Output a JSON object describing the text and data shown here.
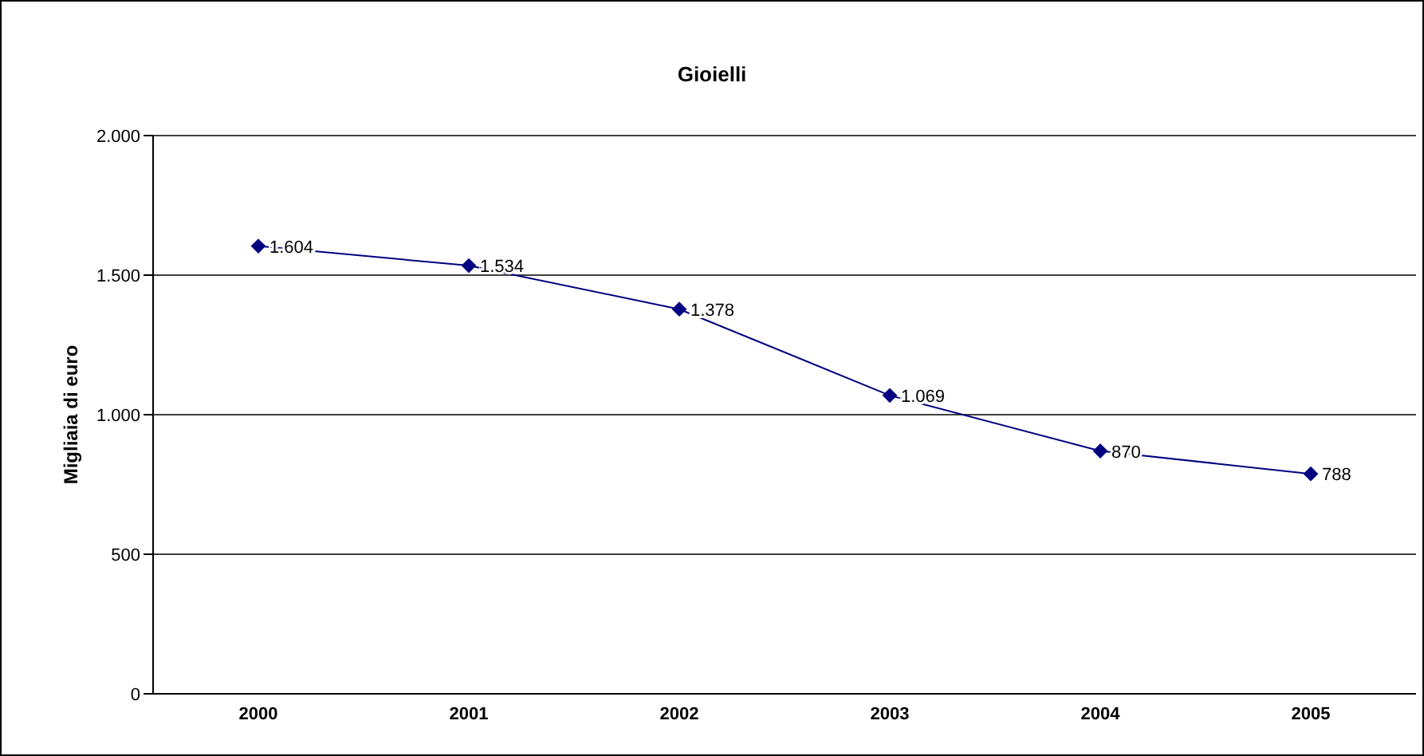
{
  "chart_data": {
    "type": "line",
    "title": "Gioielli",
    "ylabel": "Migliaia di euro",
    "categories": [
      "2000",
      "2001",
      "2002",
      "2003",
      "2004",
      "2005"
    ],
    "series": [
      {
        "color": "#000080",
        "values": [
          1604,
          1534,
          1378,
          1069,
          870,
          788
        ],
        "value_labels": [
          "1.604",
          "1.534",
          "1.378",
          "1.069",
          "870",
          "788"
        ]
      }
    ],
    "ylim": [
      0,
      2000
    ],
    "yticks": [
      {
        "value": 0,
        "label": "0"
      },
      {
        "value": 500,
        "label": "500"
      },
      {
        "value": 1000,
        "label": "1.000"
      },
      {
        "value": 1500,
        "label": "1.500"
      },
      {
        "value": 2000,
        "label": "2.000"
      }
    ],
    "grid": "y",
    "legend": false,
    "marker": "diamond",
    "line_style": "solid"
  }
}
